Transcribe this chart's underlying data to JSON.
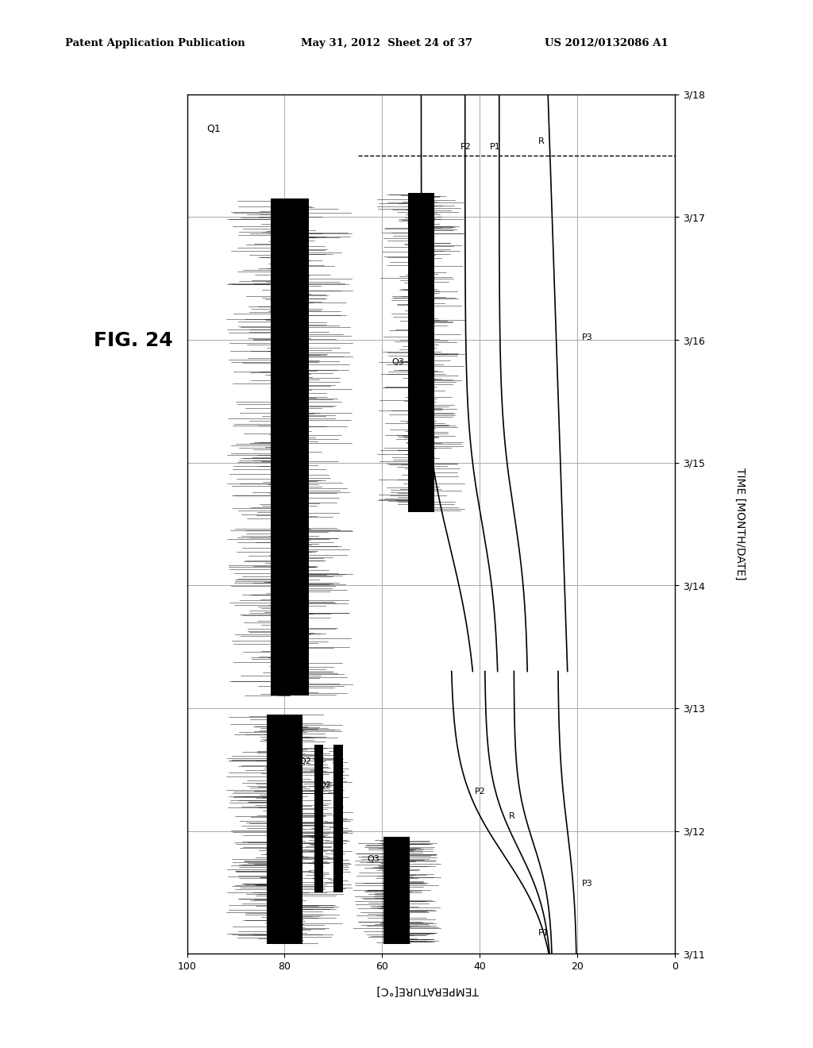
{
  "header_left": "Patent Application Publication",
  "header_center": "May 31, 2012  Sheet 24 of 37",
  "header_right": "US 2012/0132086 A1",
  "fig_label": "FIG. 24",
  "xlabel_bottom": "TEMPERATURE[°C]",
  "ylabel_right": "TIME [MONTH/DATE]",
  "date_labels": [
    "3/11",
    "3/12",
    "3/13",
    "3/14",
    "3/15",
    "3/16",
    "3/17",
    "3/18"
  ],
  "temp_ticks": [
    0,
    20,
    40,
    60,
    80,
    100
  ],
  "temp_tick_labels": [
    "0",
    "20",
    "40",
    "60",
    "80",
    "100"
  ],
  "background_color": "#ffffff",
  "grid_color": "#aaaaaa"
}
